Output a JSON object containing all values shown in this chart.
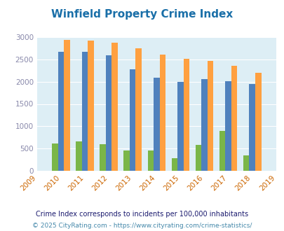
{
  "title": "Winfield Property Crime Index",
  "years": [
    2009,
    2010,
    2011,
    2012,
    2013,
    2014,
    2015,
    2016,
    2017,
    2018,
    2019
  ],
  "bar_years": [
    2010,
    2011,
    2012,
    2013,
    2014,
    2015,
    2016,
    2017,
    2018
  ],
  "winfield": [
    610,
    660,
    605,
    460,
    460,
    280,
    580,
    900,
    345
  ],
  "illinois": [
    2670,
    2670,
    2590,
    2280,
    2090,
    2000,
    2055,
    2010,
    1950
  ],
  "national": [
    2940,
    2920,
    2870,
    2750,
    2610,
    2510,
    2470,
    2360,
    2195
  ],
  "winfield_color": "#7ab648",
  "illinois_color": "#4f81bd",
  "national_color": "#ffa040",
  "plot_bg_color": "#ddeef5",
  "ylim": [
    0,
    3000
  ],
  "yticks": [
    0,
    500,
    1000,
    1500,
    2000,
    2500,
    3000
  ],
  "bar_width": 0.25,
  "footnote1": "Crime Index corresponds to incidents per 100,000 inhabitants",
  "footnote2": "© 2025 CityRating.com - https://www.cityrating.com/crime-statistics/",
  "title_color": "#1a6fa8",
  "ytick_color": "#8888aa",
  "xtick_color": "#cc6600",
  "footnote1_color": "#1a1a6e",
  "footnote2_color": "#4488aa",
  "legend_text_color": "#663399"
}
